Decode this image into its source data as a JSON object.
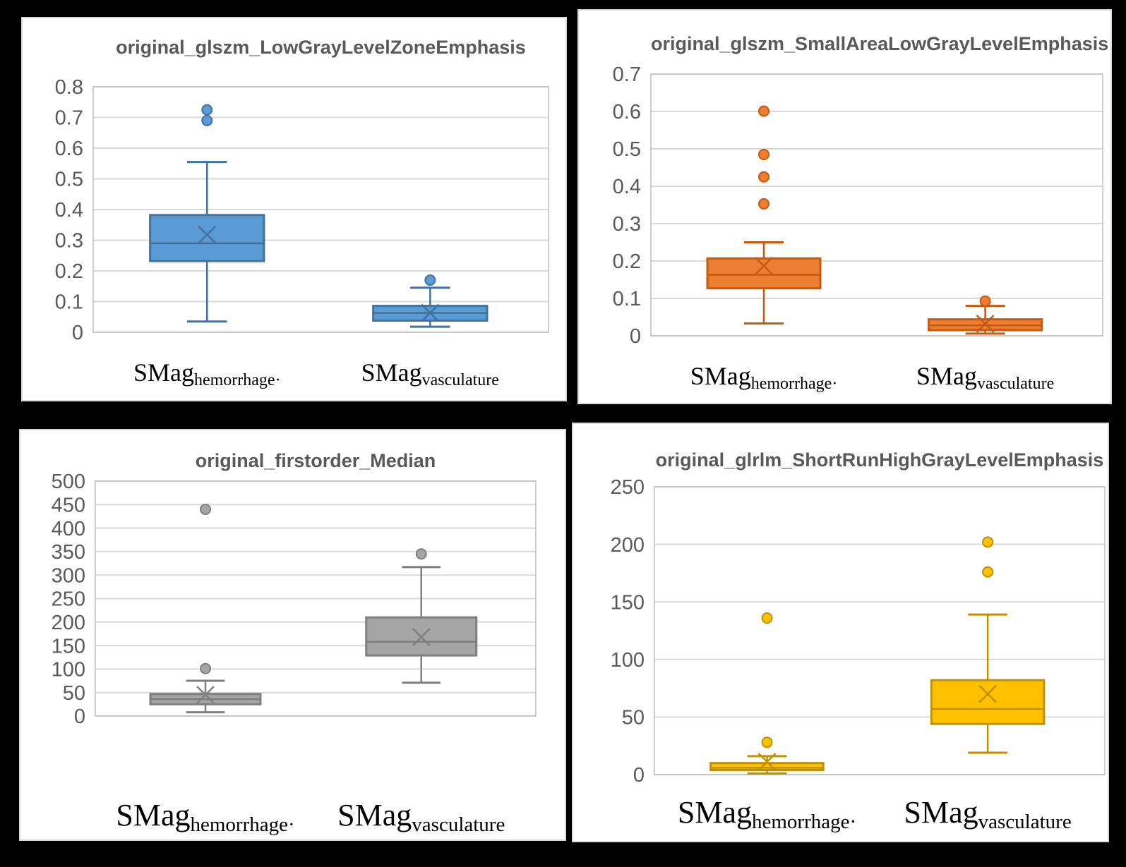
{
  "figure": {
    "background": "#000000",
    "panel_background": "#ffffff",
    "panel_border_color": "#d9d9d9",
    "gridline_color": "#d9d9d9",
    "plot_border_color": "#bfbfbf",
    "axis_text_color": "#595959",
    "title_color": "#595959"
  },
  "category_labels": [
    {
      "base": "SMag",
      "subscript": "hemorrhage·"
    },
    {
      "base": "SMag",
      "subscript": "vasculature"
    }
  ],
  "chart_data": [
    {
      "type": "box",
      "title": "original_glszm_LowGrayLevelZoneEmphasis",
      "xlabel": "",
      "ylabel": "",
      "ylim": [
        0,
        0.8
      ],
      "ytick_values": [
        0,
        0.1,
        0.2,
        0.3,
        0.4,
        0.5,
        0.6,
        0.7,
        0.8
      ],
      "ytick_labels": [
        "0",
        "0.1",
        "0.2",
        "0.3",
        "0.4",
        "0.5",
        "0.6",
        "0.7",
        "0.8"
      ],
      "grid": true,
      "legend": "none",
      "box_fill": "#5b9bd5",
      "box_stroke": "#41719c",
      "categories": [
        "SMag_hemorrhage",
        "SMag_vasculature"
      ],
      "series": [
        {
          "name": "SMag_hemorrhage",
          "whisker_low": 0.035,
          "q1": 0.232,
          "median": 0.29,
          "q3": 0.382,
          "whisker_high": 0.555,
          "mean": 0.318,
          "outliers": [
            0.69,
            0.725
          ]
        },
        {
          "name": "SMag_vasculature",
          "whisker_low": 0.018,
          "q1": 0.038,
          "median": 0.063,
          "q3": 0.086,
          "whisker_high": 0.145,
          "mean": 0.063,
          "outliers": [
            0.17
          ]
        }
      ]
    },
    {
      "type": "box",
      "title": "original_glszm_SmallAreaLowGrayLevelEmphasis",
      "xlabel": "",
      "ylabel": "",
      "ylim": [
        0,
        0.7
      ],
      "ytick_values": [
        0,
        0.1,
        0.2,
        0.3,
        0.4,
        0.5,
        0.6,
        0.7
      ],
      "ytick_labels": [
        "0",
        "0.1",
        "0.2",
        "0.3",
        "0.4",
        "0.5",
        "0.6",
        "0.7"
      ],
      "grid": true,
      "legend": "none",
      "box_fill": "#ed7d31",
      "box_stroke": "#c55a11",
      "categories": [
        "SMag_hemorrhage",
        "SMag_vasculature"
      ],
      "series": [
        {
          "name": "SMag_hemorrhage",
          "whisker_low": 0.033,
          "q1": 0.127,
          "median": 0.163,
          "q3": 0.207,
          "whisker_high": 0.25,
          "mean": 0.187,
          "outliers": [
            0.353,
            0.425,
            0.485,
            0.601
          ]
        },
        {
          "name": "SMag_vasculature",
          "whisker_low": 0.006,
          "q1": 0.015,
          "median": 0.028,
          "q3": 0.044,
          "whisker_high": 0.08,
          "mean": 0.032,
          "outliers": [
            0.093
          ]
        }
      ]
    },
    {
      "type": "box",
      "title": "original_firstorder_Median",
      "xlabel": "",
      "ylabel": "",
      "ylim": [
        0,
        500
      ],
      "ytick_values": [
        0,
        50,
        100,
        150,
        200,
        250,
        300,
        350,
        400,
        450,
        500
      ],
      "ytick_labels": [
        "0",
        "50",
        "100",
        "150",
        "200",
        "250",
        "300",
        "350",
        "400",
        "450",
        "500"
      ],
      "grid": true,
      "legend": "none",
      "box_fill": "#a5a5a5",
      "box_stroke": "#7f7f7f",
      "categories": [
        "SMag_hemorrhage",
        "SMag_vasculature"
      ],
      "series": [
        {
          "name": "SMag_hemorrhage",
          "whisker_low": 8,
          "q1": 25,
          "median": 36,
          "q3": 47,
          "whisker_high": 75,
          "mean": 45,
          "outliers": [
            101,
            440
          ]
        },
        {
          "name": "SMag_vasculature",
          "whisker_low": 71,
          "q1": 129,
          "median": 158,
          "q3": 210,
          "whisker_high": 317,
          "mean": 168,
          "outliers": [
            345
          ]
        }
      ]
    },
    {
      "type": "box",
      "title": "original_glrlm_ShortRunHighGrayLevelEmphasis",
      "xlabel": "",
      "ylabel": "",
      "ylim": [
        0,
        250
      ],
      "ytick_values": [
        0,
        50,
        100,
        150,
        200,
        250
      ],
      "ytick_labels": [
        "0",
        "50",
        "100",
        "150",
        "200",
        "250"
      ],
      "grid": true,
      "legend": "none",
      "box_fill": "#ffc000",
      "box_stroke": "#bf9000",
      "categories": [
        "SMag_hemorrhage",
        "SMag_vasculature"
      ],
      "series": [
        {
          "name": "SMag_hemorrhage",
          "whisker_low": 1,
          "q1": 4,
          "median": 6,
          "q3": 10,
          "whisker_high": 16,
          "mean": 11,
          "outliers": [
            28,
            136
          ]
        },
        {
          "name": "SMag_vasculature",
          "whisker_low": 19,
          "q1": 44,
          "median": 57,
          "q3": 82,
          "whisker_high": 139,
          "mean": 70,
          "outliers": [
            176,
            202
          ]
        }
      ]
    }
  ]
}
